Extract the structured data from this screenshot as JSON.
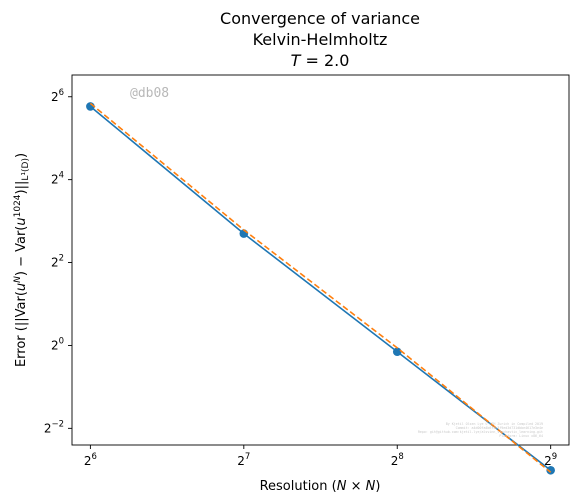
{
  "chart_data": {
    "type": "line",
    "title_lines": [
      "Convergence of variance",
      "Kelvin-Helmholtz"
    ],
    "title_math": {
      "T": "T",
      "eq": " = 2.0"
    },
    "xlabel": {
      "pre": "Resolution (",
      "math": "N × N",
      "post": ")"
    },
    "ylabel": {
      "pre": "Error (||Var(",
      "u": "u",
      "sup_N": "N",
      "mid": ") − Var(",
      "sup_1024": "1024",
      "post": ")||",
      "sub": "L¹(D)",
      "close": ")"
    },
    "x_scale": "log2",
    "y_scale": "log2",
    "xlim": [
      58.9,
      556.2
    ],
    "ylim": [
      0.1892,
      92.08
    ],
    "x_ticks": [
      {
        "value": 64,
        "base": "2",
        "exp": "6"
      },
      {
        "value": 128,
        "base": "2",
        "exp": "7"
      },
      {
        "value": 256,
        "base": "2",
        "exp": "8"
      },
      {
        "value": 512,
        "base": "2",
        "exp": "9"
      }
    ],
    "y_ticks": [
      {
        "value": 0.25,
        "base": "2",
        "exp": "−2"
      },
      {
        "value": 1,
        "base": "2",
        "exp": "0"
      },
      {
        "value": 4,
        "base": "2",
        "exp": "2"
      },
      {
        "value": 16,
        "base": "2",
        "exp": "4"
      },
      {
        "value": 64,
        "base": "2",
        "exp": "6"
      }
    ],
    "series": [
      {
        "x": [
          64,
          128,
          256,
          512
        ],
        "y": [
          54.4,
          6.49,
          0.9,
          0.124
        ],
        "color": "#1f77b4",
        "style": "solid",
        "marker": "circle"
      },
      {
        "x": [
          64,
          128,
          256,
          512
        ],
        "y": [
          57.3,
          6.9,
          0.96,
          0.12
        ],
        "color": "#ff7f0e",
        "style": "dashed",
        "marker": "none"
      }
    ],
    "watermark": "@db08",
    "footnote_lines": [
      "By Kjetil Olsen Lye © ETH Zurich in Compiled 2019",
      "Commit: a4d00fa4b6f5e3f9ed3d731dbbe4617e3e4e",
      "Repo: git@github.com:kjetil-lye/alsvinn_stochastic_learning.git",
      "Platform: Linux x86_64"
    ]
  }
}
